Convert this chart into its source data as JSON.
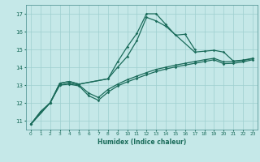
{
  "xlabel": "Humidex (Indice chaleur)",
  "xlim": [
    -0.5,
    23.5
  ],
  "ylim": [
    10.5,
    17.5
  ],
  "yticks": [
    11,
    12,
    13,
    14,
    15,
    16,
    17
  ],
  "xticks": [
    0,
    1,
    2,
    3,
    4,
    5,
    6,
    7,
    8,
    9,
    10,
    11,
    12,
    13,
    14,
    15,
    16,
    17,
    18,
    19,
    20,
    21,
    22,
    23
  ],
  "bg_color": "#c5e8e8",
  "grid_color": "#9ecfcf",
  "line_color": "#1a6b5a",
  "lines": [
    {
      "x": [
        0,
        1,
        2,
        3,
        4,
        5,
        8,
        9,
        10,
        11,
        12,
        13,
        14,
        15,
        16,
        17
      ],
      "y": [
        10.8,
        11.5,
        12.0,
        13.1,
        13.2,
        13.05,
        13.35,
        14.3,
        15.15,
        15.9,
        17.0,
        17.0,
        16.4,
        15.8,
        15.85,
        15.0
      ]
    },
    {
      "x": [
        0,
        1,
        2,
        3,
        4,
        5,
        8,
        9,
        10,
        11,
        12,
        13,
        14,
        17,
        18,
        19,
        20,
        21,
        22,
        23
      ],
      "y": [
        10.8,
        11.5,
        12.0,
        13.1,
        13.2,
        13.05,
        13.35,
        14.0,
        14.6,
        15.5,
        16.8,
        16.6,
        16.3,
        14.85,
        14.9,
        14.95,
        14.85,
        14.35,
        14.4,
        14.5
      ]
    },
    {
      "x": [
        0,
        2,
        3,
        4,
        5,
        6,
        7,
        8,
        9,
        10,
        11,
        12,
        13,
        14,
        15,
        16,
        17,
        18,
        19,
        20,
        21,
        22,
        23
      ],
      "y": [
        10.8,
        12.0,
        13.0,
        13.1,
        13.0,
        12.55,
        12.3,
        12.75,
        13.05,
        13.3,
        13.5,
        13.7,
        13.88,
        14.0,
        14.12,
        14.22,
        14.32,
        14.42,
        14.5,
        14.3,
        14.32,
        14.38,
        14.48
      ]
    },
    {
      "x": [
        0,
        2,
        3,
        4,
        5,
        6,
        7,
        8,
        9,
        10,
        11,
        12,
        13,
        14,
        15,
        16,
        17,
        18,
        19,
        20,
        21,
        22,
        23
      ],
      "y": [
        10.8,
        12.0,
        13.0,
        13.05,
        12.95,
        12.4,
        12.15,
        12.6,
        12.95,
        13.18,
        13.38,
        13.58,
        13.76,
        13.9,
        14.02,
        14.12,
        14.22,
        14.32,
        14.42,
        14.2,
        14.22,
        14.3,
        14.42
      ]
    }
  ]
}
